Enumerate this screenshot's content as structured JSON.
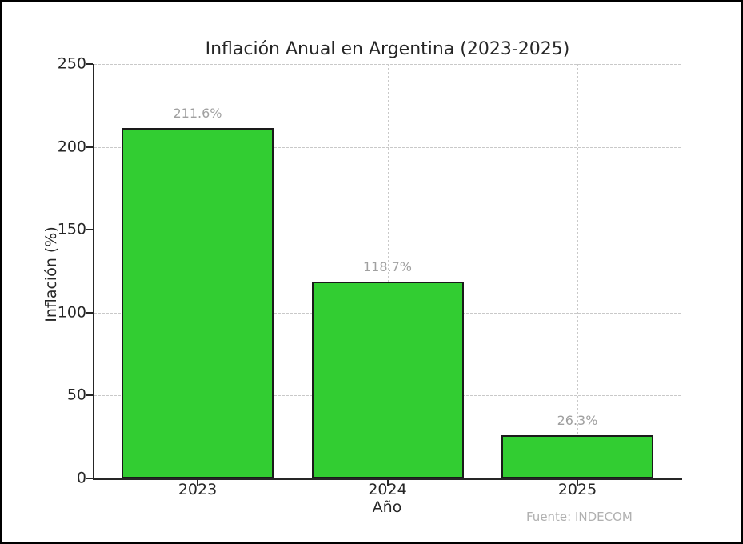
{
  "chart_data": {
    "type": "bar",
    "title": "Inflación Anual en Argentina (2023-2025)",
    "xlabel": "Año",
    "ylabel": "Inflación (%)",
    "categories": [
      "2023",
      "2024",
      "2025"
    ],
    "values": [
      211.6,
      118.7,
      26.3
    ],
    "bar_labels": [
      "211.6%",
      "118.7%",
      "26.3%"
    ],
    "ylim": [
      0,
      250
    ],
    "yticks": [
      0,
      50,
      100,
      150,
      200,
      250
    ],
    "grid": true,
    "grid_style": "dashed",
    "legend": null,
    "annotation": "Fuente: INDECOM",
    "bar_color": "#32CD32",
    "bar_edge_color": "#1a1a1a",
    "value_label_color": "#a0a0a0",
    "annotation_color": "#b0b0b0"
  }
}
